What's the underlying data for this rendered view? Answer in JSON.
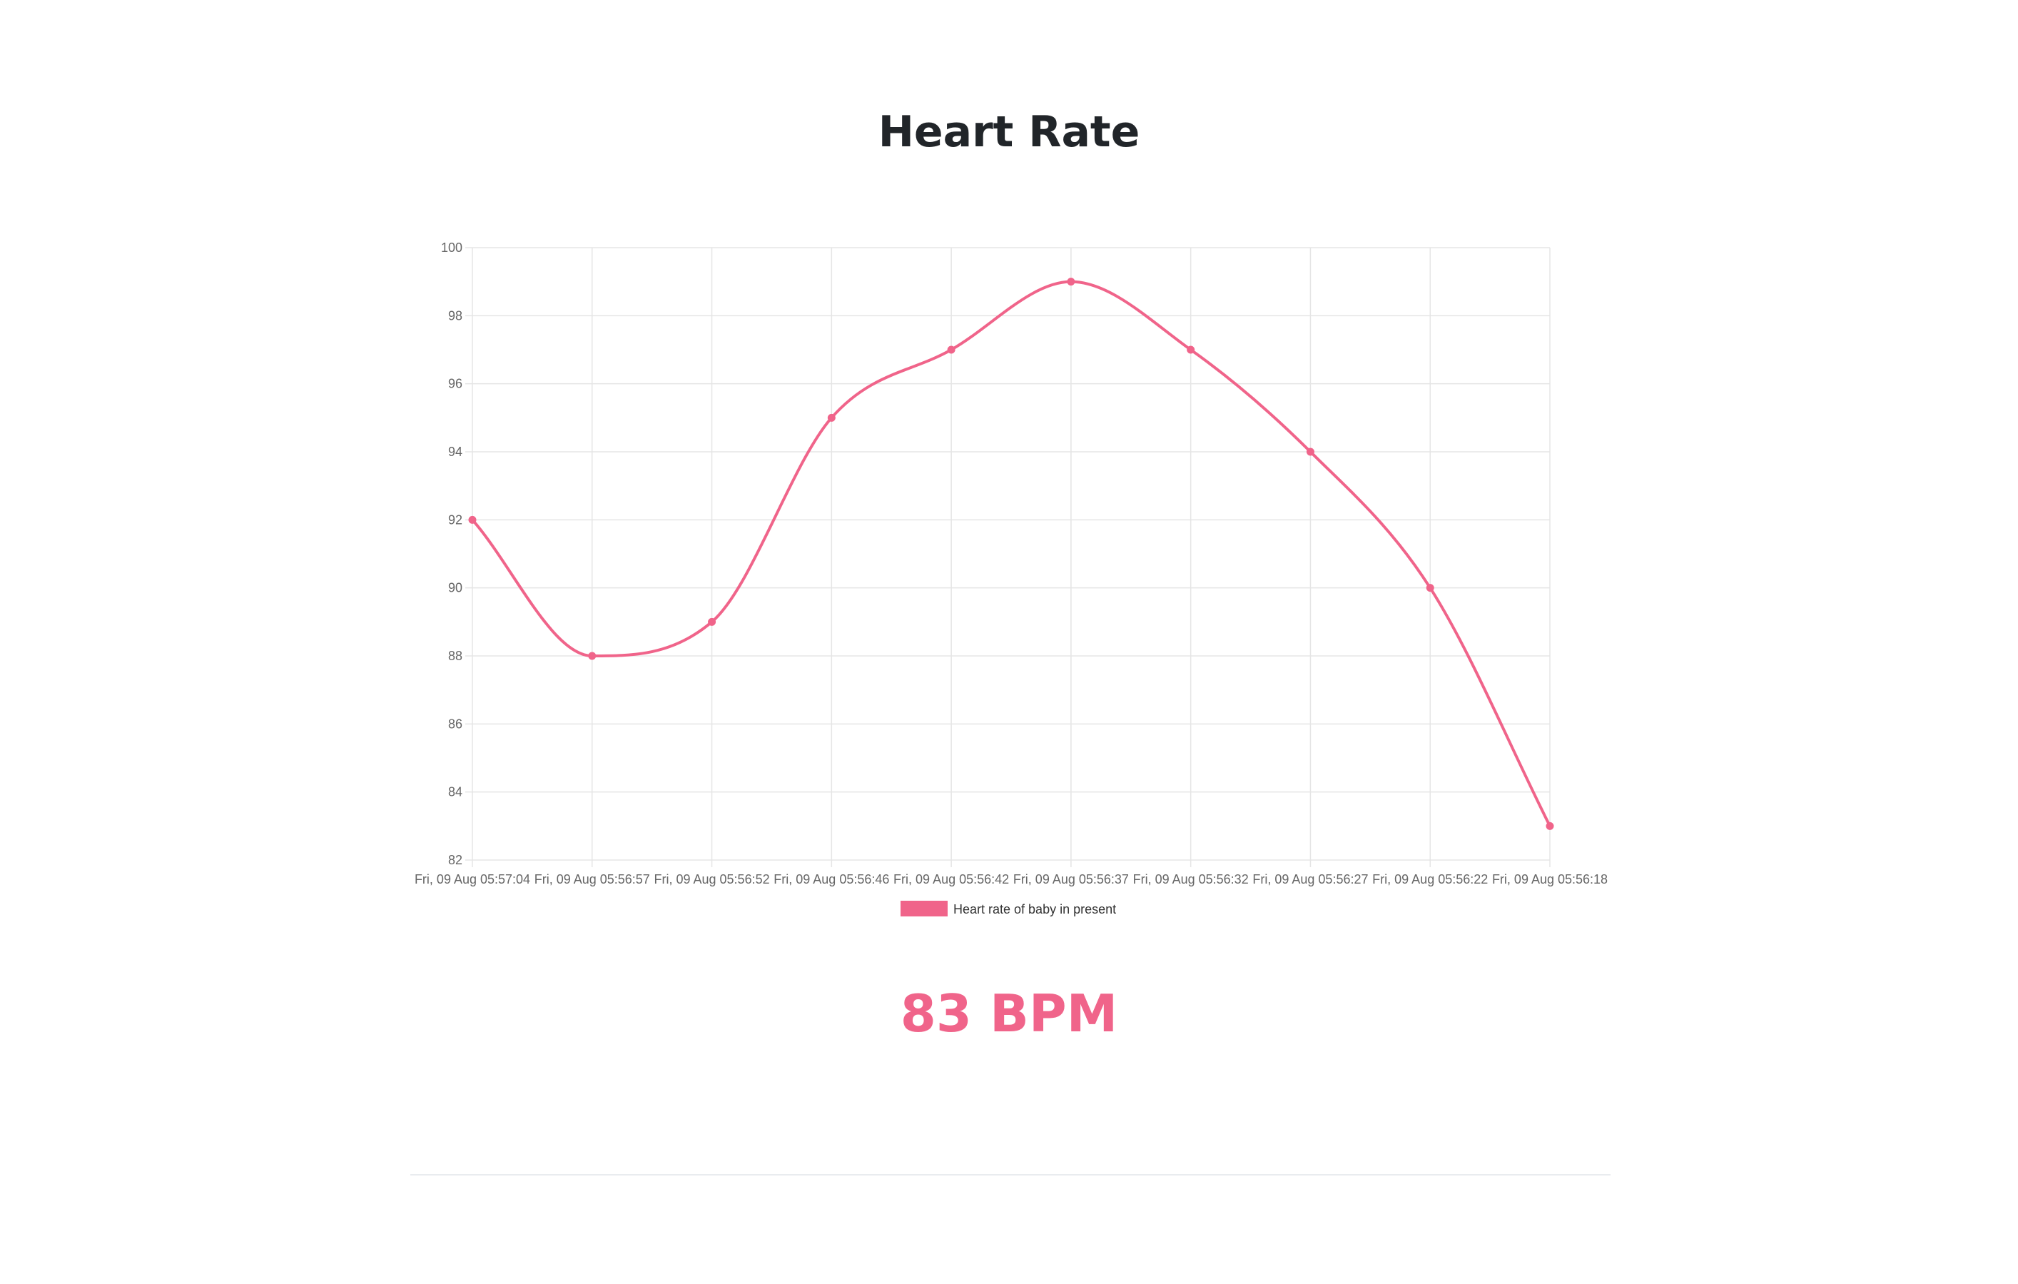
{
  "page": {
    "title": "Heart Rate",
    "current_value": "83 BPM"
  },
  "colors": {
    "series": "#f0648a",
    "grid": "#e5e5e5",
    "tick_text": "#666666"
  },
  "chart_data": {
    "type": "line",
    "title": "",
    "xlabel": "",
    "ylabel": "",
    "categories": [
      "Fri, 09 Aug 05:57:04",
      "Fri, 09 Aug 05:56:57",
      "Fri, 09 Aug 05:56:52",
      "Fri, 09 Aug 05:56:46",
      "Fri, 09 Aug 05:56:42",
      "Fri, 09 Aug 05:56:37",
      "Fri, 09 Aug 05:56:32",
      "Fri, 09 Aug 05:56:27",
      "Fri, 09 Aug 05:56:22",
      "Fri, 09 Aug 05:56:18"
    ],
    "series": [
      {
        "name": "Heart rate of baby in present",
        "values": [
          92,
          88,
          89,
          95,
          97,
          99,
          97,
          94,
          90,
          83
        ]
      }
    ],
    "ylim": [
      82,
      100
    ],
    "yticks": [
      82,
      84,
      86,
      88,
      90,
      92,
      94,
      96,
      98,
      100
    ],
    "grid": true,
    "legend_position": "bottom",
    "smooth": true
  }
}
